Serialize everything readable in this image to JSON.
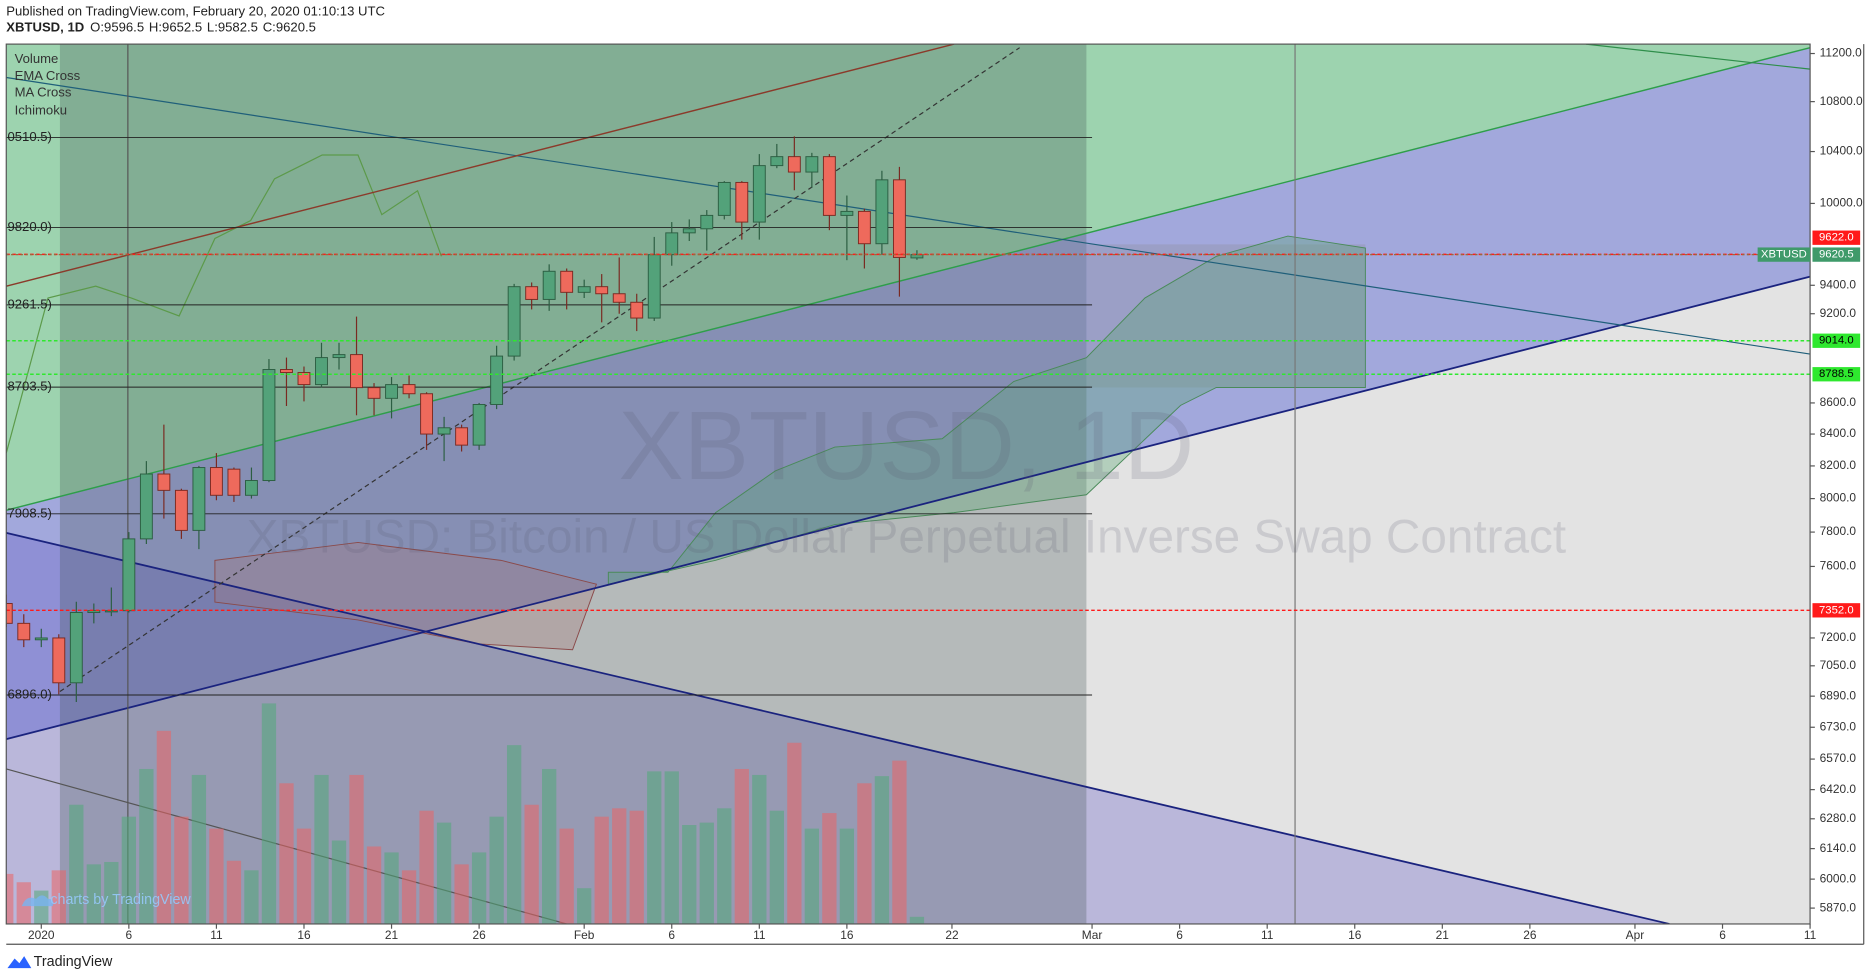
{
  "chart_data": {
    "type": "candlestick",
    "header": {
      "published": "Published on TradingView.com, February 20, 2020 01:10:13 UTC",
      "symbol": "XBTUSD, 1D",
      "ohlc_labels": [
        "O:",
        "H:",
        "L:",
        "C:"
      ]
    },
    "legend": [
      "Volume",
      "EMA Cross",
      "MA Cross",
      "Ichimoku"
    ],
    "watermark": {
      "title": "XBTUSD, 1D",
      "description": "XBTUSD: Bitcoin / US Dollar Perpetual Inverse Swap Contract"
    },
    "footer": {
      "brand": "TradingView",
      "badge": "charts by TradingView"
    },
    "log_scale": true,
    "ylim": [
      5800,
      11280
    ],
    "xlim": [
      "2019-12-30",
      "2020-04-11"
    ],
    "up_color": "#53a27a",
    "down_color": "#ee6a5c",
    "volume_up_color": "rgba(80,170,120,0.55)",
    "volume_down_color": "rgba(235,100,100,0.55)",
    "yticks": [
      {
        "value": 11200,
        "label": "11200.0"
      },
      {
        "value": 10800,
        "label": "10800.0"
      },
      {
        "value": 10400,
        "label": "10400.0"
      },
      {
        "value": 10000,
        "label": "10000.0"
      },
      {
        "value": 9400,
        "label": "9400.0"
      },
      {
        "value": 9200,
        "label": "9200.0"
      },
      {
        "value": 8600,
        "label": "8600.0"
      },
      {
        "value": 8400,
        "label": "8400.0"
      },
      {
        "value": 8200,
        "label": "8200.0"
      },
      {
        "value": 8000,
        "label": "8000.0"
      },
      {
        "value": 7800,
        "label": "7800.0"
      },
      {
        "value": 7600,
        "label": "7600.0"
      },
      {
        "value": 7200,
        "label": "7200.0"
      },
      {
        "value": 7050,
        "label": "7050.0"
      },
      {
        "value": 6890,
        "label": "6890.0"
      },
      {
        "value": 6730,
        "label": "6730.0"
      },
      {
        "value": 6570,
        "label": "6570.0"
      },
      {
        "value": 6420,
        "label": "6420.0"
      },
      {
        "value": 6280,
        "label": "6280.0"
      },
      {
        "value": 6140,
        "label": "6140.0"
      },
      {
        "value": 6000,
        "label": "6000.0"
      },
      {
        "value": 5870,
        "label": "5870.0"
      }
    ],
    "xticks": [
      {
        "value": "2020-01-01",
        "label": "2020"
      },
      {
        "value": "2020-01-06",
        "label": "6"
      },
      {
        "value": "2020-01-11",
        "label": "11"
      },
      {
        "value": "2020-01-16",
        "label": "16"
      },
      {
        "value": "2020-01-21",
        "label": "21"
      },
      {
        "value": "2020-01-26",
        "label": "26"
      },
      {
        "value": "2020-02-01",
        "label": "Feb"
      },
      {
        "value": "2020-02-06",
        "label": "6"
      },
      {
        "value": "2020-02-11",
        "label": "11"
      },
      {
        "value": "2020-02-16",
        "label": "16"
      },
      {
        "value": "2020-02-22",
        "label": "22"
      },
      {
        "value": "2020-03-01",
        "label": "Mar"
      },
      {
        "value": "2020-03-06",
        "label": "6"
      },
      {
        "value": "2020-03-11",
        "label": "11"
      },
      {
        "value": "2020-03-16",
        "label": "16"
      },
      {
        "value": "2020-03-21",
        "label": "21"
      },
      {
        "value": "2020-03-26",
        "label": "26"
      },
      {
        "value": "2020-04-01",
        "label": "Apr"
      },
      {
        "value": "2020-04-06",
        "label": "6"
      },
      {
        "value": "2020-04-11",
        "label": "11"
      }
    ],
    "levels": [
      {
        "value": 10510.5,
        "label": "0510.5)"
      },
      {
        "value": 9820,
        "label": "9820.0)"
      },
      {
        "value": 9261.5,
        "label": "9261.5)"
      },
      {
        "value": 8703.5,
        "label": "8703.5)"
      },
      {
        "value": 7908.5,
        "label": "7908.5)"
      },
      {
        "value": 6896,
        "label": "6896.0)"
      }
    ],
    "price_lines": [
      {
        "value": 9622,
        "label": "9622.0",
        "color": "#ff1a1a"
      },
      {
        "value": 9014,
        "label": "9014.0",
        "color": "#2ee82e"
      },
      {
        "value": 8788.5,
        "label": "8788.5",
        "color": "#2ee82e"
      },
      {
        "value": 7352,
        "label": "7352.0",
        "color": "#ff1a1a"
      }
    ],
    "last_price_name": "XBTUSD",
    "x": [
      "2019-12-30",
      "2019-12-31",
      "2020-01-01",
      "2020-01-02",
      "2020-01-03",
      "2020-01-04",
      "2020-01-05",
      "2020-01-06",
      "2020-01-07",
      "2020-01-08",
      "2020-01-09",
      "2020-01-10",
      "2020-01-11",
      "2020-01-12",
      "2020-01-13",
      "2020-01-14",
      "2020-01-15",
      "2020-01-16",
      "2020-01-17",
      "2020-01-18",
      "2020-01-19",
      "2020-01-20",
      "2020-01-21",
      "2020-01-22",
      "2020-01-23",
      "2020-01-24",
      "2020-01-25",
      "2020-01-26",
      "2020-01-27",
      "2020-01-28",
      "2020-01-29",
      "2020-01-30",
      "2020-01-31",
      "2020-02-01",
      "2020-02-02",
      "2020-02-03",
      "2020-02-04",
      "2020-02-05",
      "2020-02-06",
      "2020-02-07",
      "2020-02-08",
      "2020-02-09",
      "2020-02-10",
      "2020-02-11",
      "2020-02-12",
      "2020-02-13",
      "2020-02-14",
      "2020-02-15",
      "2020-02-16",
      "2020-02-17",
      "2020-02-18",
      "2020-02-19",
      "2020-02-20"
    ],
    "open": [
      7390,
      7280,
      7190,
      7200,
      6960,
      7340,
      7350,
      7350,
      7760,
      8150,
      8050,
      7810,
      8190,
      8180,
      8020,
      8110,
      8820,
      8800,
      8720,
      8900,
      8920,
      8700,
      8630,
      8720,
      8660,
      8400,
      8440,
      8330,
      8590,
      8910,
      9390,
      9300,
      9500,
      9350,
      9390,
      9340,
      9280,
      9170,
      9620,
      9780,
      9810,
      9910,
      10160,
      9860,
      10290,
      10360,
      10240,
      10360,
      9910,
      9940,
      9700,
      10180,
      9596.5
    ],
    "high": [
      7440,
      7330,
      7250,
      7220,
      7400,
      7390,
      7480,
      7800,
      8230,
      8460,
      8060,
      8200,
      8280,
      8190,
      8190,
      8890,
      8900,
      8840,
      9000,
      9000,
      9180,
      8730,
      8770,
      8780,
      8670,
      8510,
      8460,
      8600,
      8980,
      9410,
      9420,
      9550,
      9520,
      9440,
      9480,
      9600,
      9340,
      9750,
      9860,
      9880,
      9950,
      10170,
      10170,
      10380,
      10460,
      10520,
      10390,
      10380,
      10060,
      9960,
      10250,
      10280,
      9652.5
    ],
    "low": [
      7260,
      7150,
      7150,
      6900,
      6860,
      7280,
      7320,
      7340,
      7730,
      7880,
      7760,
      7700,
      7990,
      7980,
      8000,
      8100,
      8580,
      8610,
      8700,
      8820,
      8520,
      8520,
      8500,
      8630,
      8300,
      8230,
      8290,
      8300,
      8560,
      8880,
      9230,
      9220,
      9230,
      9310,
      9140,
      9200,
      9080,
      9150,
      9540,
      9720,
      9650,
      9880,
      9730,
      9730,
      10270,
      10100,
      10120,
      9800,
      9580,
      9520,
      9620,
      9320,
      9582.5
    ],
    "close": [
      7280,
      7190,
      7200,
      6960,
      7340,
      7350,
      7350,
      7760,
      8150,
      8050,
      7810,
      8190,
      8020,
      8020,
      8110,
      8820,
      8800,
      8720,
      8900,
      8920,
      8700,
      8630,
      8720,
      8660,
      8400,
      8440,
      8330,
      8590,
      8910,
      9390,
      9300,
      9500,
      9350,
      9390,
      9340,
      9280,
      9170,
      9620,
      9780,
      9810,
      9910,
      10160,
      9860,
      10290,
      10360,
      10240,
      10360,
      9910,
      9940,
      9700,
      10180,
      9600,
      9620.5
    ],
    "volume": [
      42,
      35,
      28,
      45,
      100,
      50,
      52,
      90,
      130,
      162,
      90,
      125,
      80,
      53,
      45,
      185,
      118,
      80,
      125,
      70,
      125,
      65,
      60,
      45,
      95,
      85,
      50,
      60,
      90,
      150,
      100,
      130,
      80,
      30,
      90,
      97,
      95,
      128,
      128,
      83,
      85,
      97,
      130,
      125,
      95,
      152,
      80,
      93,
      80,
      118,
      124,
      137,
      6
    ]
  }
}
